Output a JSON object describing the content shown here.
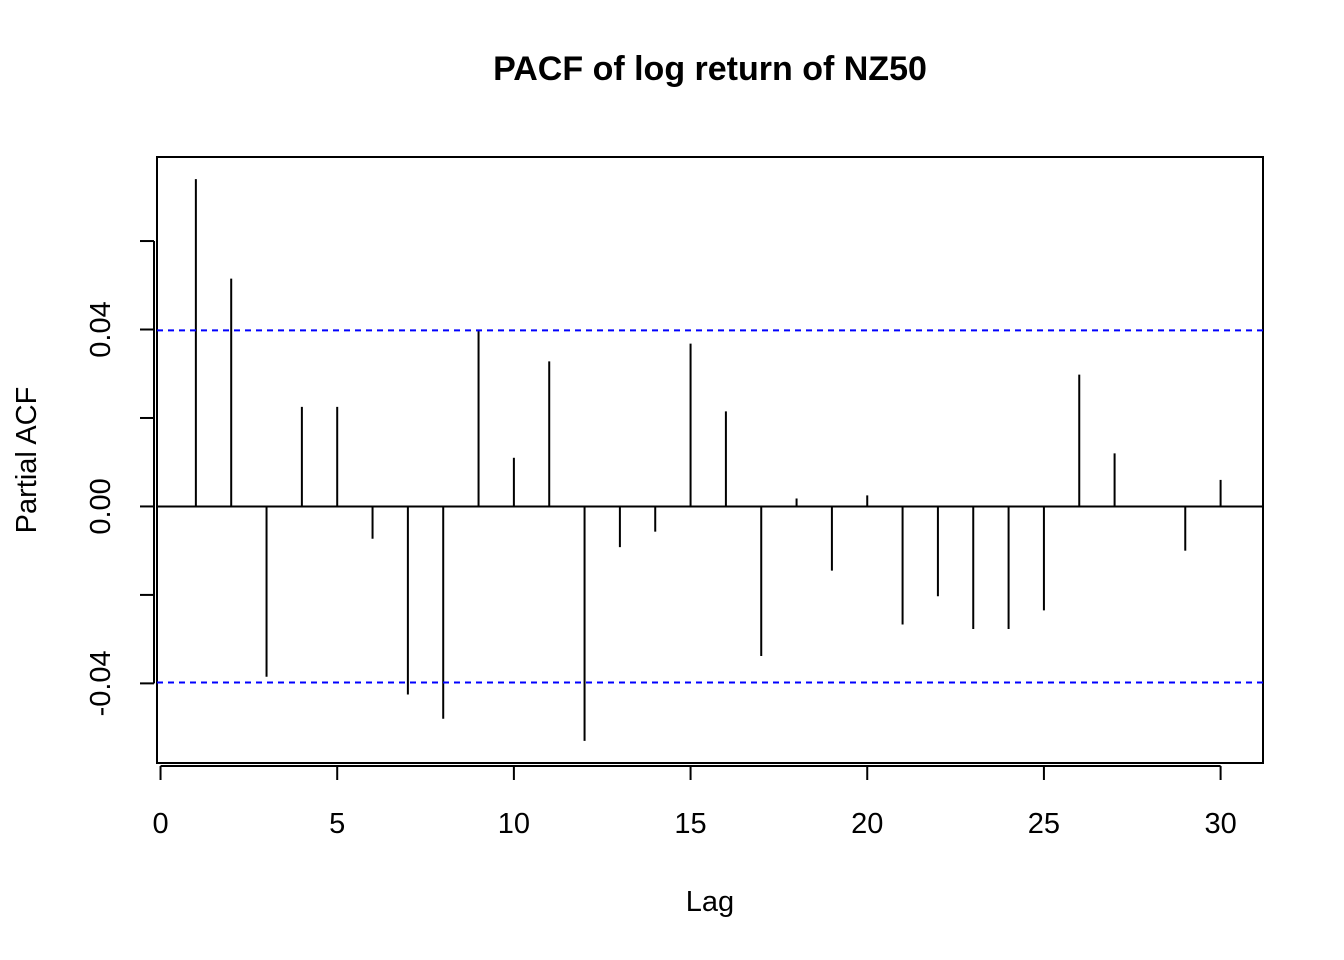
{
  "chart_data": {
    "type": "bar",
    "title": "PACF of log return of NZ50",
    "xlabel": "Lag",
    "ylabel": "Partial ACF",
    "xlim": [
      -0.1,
      31.2
    ],
    "ylim": [
      -0.058,
      0.079
    ],
    "xticks": [
      0,
      5,
      10,
      15,
      20,
      25,
      30
    ],
    "xtick_labels": [
      "0",
      "5",
      "10",
      "15",
      "20",
      "25",
      "30"
    ],
    "yticks": [
      -0.04,
      -0.02,
      0.0,
      0.02,
      0.04,
      0.06
    ],
    "ytick_labels": [
      "-0.04",
      "",
      "0.00",
      "",
      "0.04",
      ""
    ],
    "confidence_bound": 0.0398,
    "lags": [
      1,
      2,
      3,
      4,
      5,
      6,
      7,
      8,
      9,
      10,
      11,
      12,
      13,
      14,
      15,
      16,
      17,
      18,
      19,
      20,
      21,
      22,
      23,
      24,
      25,
      26,
      27,
      28,
      29,
      30
    ],
    "values": [
      0.074,
      0.0515,
      -0.0385,
      0.0225,
      0.0225,
      -0.0073,
      -0.0425,
      -0.048,
      0.0398,
      0.011,
      0.0328,
      -0.053,
      -0.0092,
      -0.0057,
      0.0368,
      0.0215,
      -0.0338,
      0.0018,
      -0.0145,
      0.0025,
      -0.0267,
      -0.0203,
      -0.0277,
      -0.0277,
      -0.0235,
      0.0298,
      0.012,
      0.0,
      -0.01,
      0.006
    ],
    "colors": {
      "bars": "#000000",
      "confidence_line": "#0000ff",
      "axes": "#000000"
    },
    "grid": false
  }
}
